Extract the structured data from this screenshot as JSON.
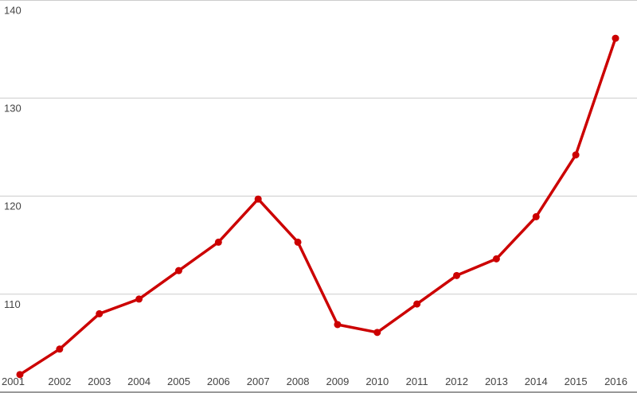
{
  "chart_data": {
    "type": "line",
    "x": [
      "2001",
      "2002",
      "2003",
      "2004",
      "2005",
      "2006",
      "2007",
      "2008",
      "2009",
      "2010",
      "2011",
      "2012",
      "2013",
      "2014",
      "2015",
      "2016"
    ],
    "series": [
      {
        "values": [
          101.8,
          104.4,
          108.0,
          109.5,
          112.4,
          115.3,
          119.7,
          115.3,
          106.9,
          106.1,
          109.0,
          111.9,
          113.6,
          117.9,
          124.2,
          136.1
        ],
        "color": "#cc0000"
      }
    ],
    "ylim": [
      100,
      140
    ],
    "yticks": [
      "110",
      "120",
      "130",
      "140"
    ],
    "grid": true,
    "title": "",
    "xlabel": "",
    "ylabel": ""
  }
}
